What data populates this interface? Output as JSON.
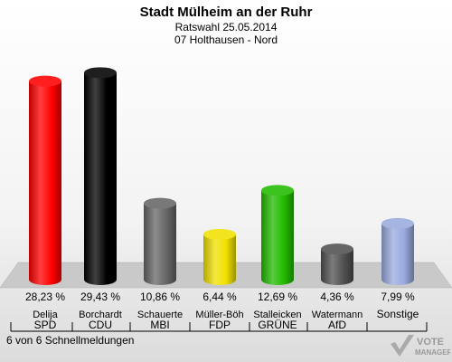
{
  "header": {
    "title": "Stadt Mülheim an der Ruhr",
    "subtitle1": "Ratswahl 25.05.2014",
    "subtitle2": "07 Holthausen - Nord"
  },
  "footer": {
    "text": "6 von 6 Schnellmeldungen"
  },
  "logo": {
    "line1": "VOTE",
    "line2": "MANAGER"
  },
  "chart_data": {
    "type": "bar",
    "categories": [
      "SPD",
      "CDU",
      "MBI",
      "FDP",
      "GRÜNE",
      "AfD",
      "Sonstige"
    ],
    "candidates": [
      "Delija",
      "Borchardt",
      "Schauerte",
      "Müller-Böh",
      "Stalleicken",
      "Watermann",
      ""
    ],
    "values": [
      28.23,
      29.43,
      10.86,
      6.44,
      12.69,
      4.36,
      7.99
    ],
    "value_labels": [
      "28,23 %",
      "29,43 %",
      "10,86 %",
      "6,44 %",
      "12,69 %",
      "4,36 %",
      "7,99 %"
    ],
    "colors": [
      "#ff0000",
      "#000000",
      "#666666",
      "#f0e000",
      "#22bb00",
      "#505050",
      "#99aadd"
    ],
    "ylim": [
      0,
      30
    ]
  }
}
